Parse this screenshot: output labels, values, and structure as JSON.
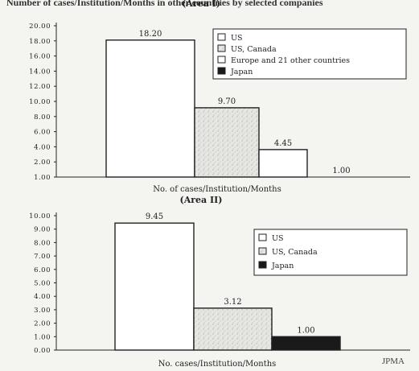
{
  "header": {
    "title": "Number of cases/Institution/Months in other countries by selected companies"
  },
  "footer": {
    "source": "JPMA"
  },
  "colors": {
    "ink": "#222222",
    "japan": "#1a1a1a",
    "bg": "#f4f4f1"
  },
  "chart_data": [
    {
      "type": "bar",
      "title": "(Area I)",
      "xlabel": "No. of cases/Institution/Months",
      "ylabel": "",
      "ylim": [
        1.0,
        20.0
      ],
      "yticks": [
        "20.00",
        "18.00",
        "16.00",
        "14.00",
        "12.00",
        "10.00",
        "8.00",
        "6.00",
        "4.00",
        "2.00",
        "1.00"
      ],
      "grid": false,
      "legend": "top-right",
      "series": [
        {
          "name": "US",
          "value": 18.2,
          "label": "18.20",
          "fill": "white"
        },
        {
          "name": "US, Canada",
          "value": 9.7,
          "label": "9.70",
          "fill": "speckled"
        },
        {
          "name": "Europe and 21 other countries",
          "value": 4.45,
          "label": "4.45",
          "fill": "white"
        },
        {
          "name": "Japan",
          "value": 1.0,
          "label": "1.00",
          "fill": "black"
        }
      ]
    },
    {
      "type": "bar",
      "title": "(Area II)",
      "xlabel": "No. cases/Institution/Months",
      "ylabel": "",
      "ylim": [
        0.0,
        10.0
      ],
      "yticks": [
        "10.00",
        "9.00",
        "8.00",
        "7.00",
        "6.00",
        "5.00",
        "4.00",
        "3.00",
        "2.00",
        "1.00",
        "0.00"
      ],
      "grid": false,
      "legend": "top-right",
      "series": [
        {
          "name": "US",
          "value": 9.45,
          "label": "9.45",
          "fill": "white"
        },
        {
          "name": "US, Canada",
          "value": 3.12,
          "label": "3.12",
          "fill": "speckled"
        },
        {
          "name": "Japan",
          "value": 1.0,
          "label": "1.00",
          "fill": "black"
        }
      ]
    }
  ]
}
